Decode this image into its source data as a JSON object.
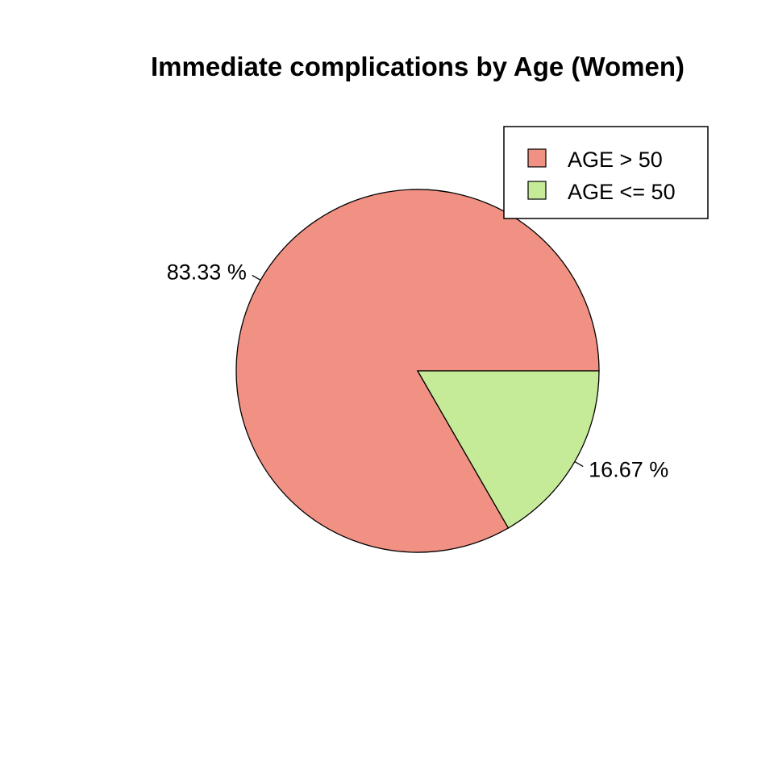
{
  "chart_data": {
    "type": "pie",
    "title": "Immediate complications by Age (Women)",
    "slices": [
      {
        "name": "AGE > 50",
        "value": 83.33,
        "label": "83.33 %",
        "color": "#F19183"
      },
      {
        "name": "AGE <= 50",
        "value": 16.67,
        "label": "16.67 %",
        "color": "#C5EB99"
      }
    ],
    "legend": {
      "position": "top-right",
      "entries": [
        "AGE > 50",
        "AGE <= 50"
      ]
    },
    "start_angle_deg": 0,
    "direction": "counterclockwise"
  }
}
